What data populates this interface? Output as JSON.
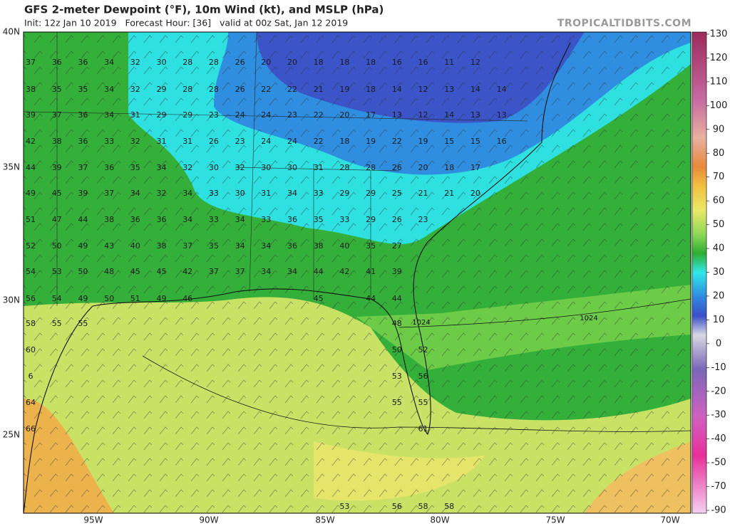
{
  "header": {
    "title": "GFS 2-meter Dewpoint (°F), 10m Wind (kt), and MSLP (hPa)",
    "subtitle": "Init: 12z Jan 10 2019   Forecast Hour: [36]   valid at 00z Sat, Jan 12 2019",
    "site": "TROPICALTIDBITS.COM"
  },
  "map": {
    "lat_labels": [
      "40N",
      "35N",
      "30N",
      "25N"
    ],
    "lon_labels": [
      "95W",
      "90W",
      "85W",
      "80W",
      "75W",
      "70W"
    ],
    "dewpoints": [
      [
        37,
        36,
        36,
        34,
        32,
        30,
        28,
        28,
        26,
        20,
        20,
        18,
        18,
        18,
        16,
        16,
        11,
        12
      ],
      [
        38,
        35,
        35,
        34,
        32,
        29,
        28,
        28,
        26,
        22,
        22,
        21,
        19,
        18,
        14,
        12,
        13,
        14,
        14
      ],
      [
        39,
        37,
        36,
        34,
        31,
        29,
        29,
        23,
        24,
        24,
        23,
        22,
        20,
        17,
        13,
        12,
        14,
        13,
        13
      ],
      [
        42,
        38,
        36,
        33,
        32,
        31,
        31,
        26,
        23,
        24,
        24,
        22,
        18,
        19,
        22,
        19,
        15,
        15,
        16
      ],
      [
        44,
        39,
        37,
        36,
        35,
        34,
        32,
        30,
        32,
        30,
        30,
        31,
        28,
        28,
        26,
        20,
        18,
        17
      ],
      [
        49,
        45,
        39,
        37,
        34,
        32,
        34,
        33,
        30,
        31,
        34,
        33,
        29,
        29,
        25,
        21,
        21,
        20
      ],
      [
        51,
        47,
        44,
        38,
        36,
        36,
        34,
        33,
        34,
        33,
        36,
        35,
        33,
        29,
        26,
        23
      ],
      [
        52,
        50,
        49,
        43,
        40,
        38,
        37,
        35,
        34,
        34,
        36,
        38,
        40,
        35,
        27
      ],
      [
        54,
        53,
        50,
        48,
        45,
        45,
        42,
        37,
        37,
        34,
        34,
        44,
        42,
        41,
        39
      ],
      [
        56,
        54,
        49,
        50,
        51,
        49,
        46,
        null,
        null,
        null,
        null,
        45,
        null,
        44,
        44
      ],
      [
        58,
        55,
        55,
        null,
        null,
        null,
        null,
        null,
        null,
        null,
        null,
        null,
        null,
        null,
        48
      ],
      [
        60,
        null,
        null,
        null,
        null,
        null,
        null,
        null,
        null,
        null,
        null,
        null,
        null,
        null,
        50,
        52
      ],
      [
        6,
        null,
        null,
        null,
        null,
        null,
        null,
        null,
        null,
        null,
        null,
        null,
        null,
        null,
        53,
        56
      ],
      [
        64,
        null,
        null,
        null,
        null,
        null,
        null,
        null,
        null,
        null,
        null,
        null,
        null,
        null,
        55,
        55
      ],
      [
        66,
        null,
        null,
        null,
        null,
        null,
        null,
        null,
        null,
        null,
        null,
        null,
        null,
        null,
        null,
        61
      ],
      [
        null,
        null,
        null,
        null,
        null,
        null,
        null,
        null,
        null,
        null,
        null,
        null,
        53,
        null,
        56,
        58,
        58
      ]
    ],
    "isobar_labels": [
      "1024",
      "1024"
    ]
  },
  "colorbar": {
    "ticks": [
      130,
      120,
      110,
      100,
      90,
      80,
      70,
      60,
      50,
      40,
      30,
      20,
      10,
      0,
      -10,
      -20,
      -30,
      -40,
      -50,
      -70,
      -90
    ]
  }
}
